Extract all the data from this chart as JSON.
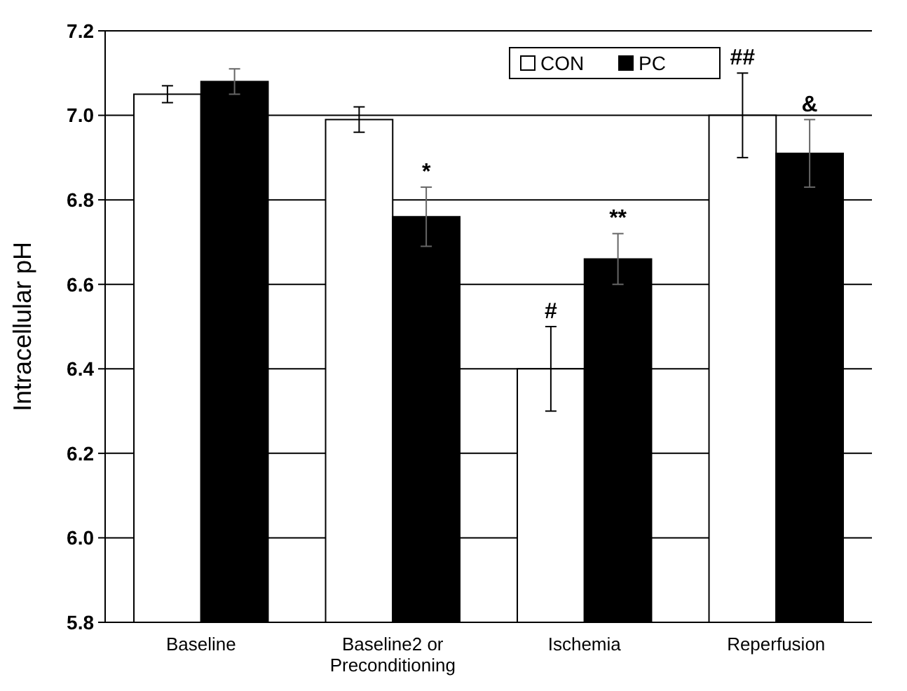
{
  "chart_data": {
    "type": "bar",
    "ylabel": "Intracellular pH",
    "categories": [
      "Baseline",
      "Baseline2 or Preconditioning",
      "Ischemia",
      "Reperfusion"
    ],
    "series": [
      {
        "name": "CON",
        "color": "#ffffff",
        "values": [
          7.05,
          6.99,
          6.4,
          7.0
        ],
        "errors": [
          0.02,
          0.03,
          0.1,
          0.1
        ]
      },
      {
        "name": "PC",
        "color": "#000000",
        "values": [
          7.08,
          6.76,
          6.66,
          6.91
        ],
        "errors": [
          0.03,
          0.07,
          0.06,
          0.08
        ]
      }
    ],
    "ylim": [
      5.8,
      7.2
    ],
    "yticks": [
      {
        "value": 5.8,
        "label": "5.8"
      },
      {
        "value": 6.0,
        "label": "6.0"
      },
      {
        "value": 6.2,
        "label": "6.2"
      },
      {
        "value": 6.4,
        "label": "6.4"
      },
      {
        "value": 6.6,
        "label": "6.6"
      },
      {
        "value": 6.8,
        "label": "6.8"
      },
      {
        "value": 7.0,
        "label": "7.0"
      },
      {
        "value": 7.2,
        "label": "7.2"
      }
    ],
    "grid": "y",
    "legend": "top",
    "annotations": [
      {
        "text": "*",
        "x": "Baseline2 or Preconditioning",
        "y": 6.76
      },
      {
        "text": "#",
        "x": "Ischemia",
        "y": 6.4
      },
      {
        "text": "**",
        "x": "Ischemia",
        "y": 6.66
      },
      {
        "text": "##",
        "x": "Reperfusion",
        "y": 7.0
      },
      {
        "text": "&",
        "x": "Reperfusion",
        "y": 6.91
      }
    ]
  }
}
